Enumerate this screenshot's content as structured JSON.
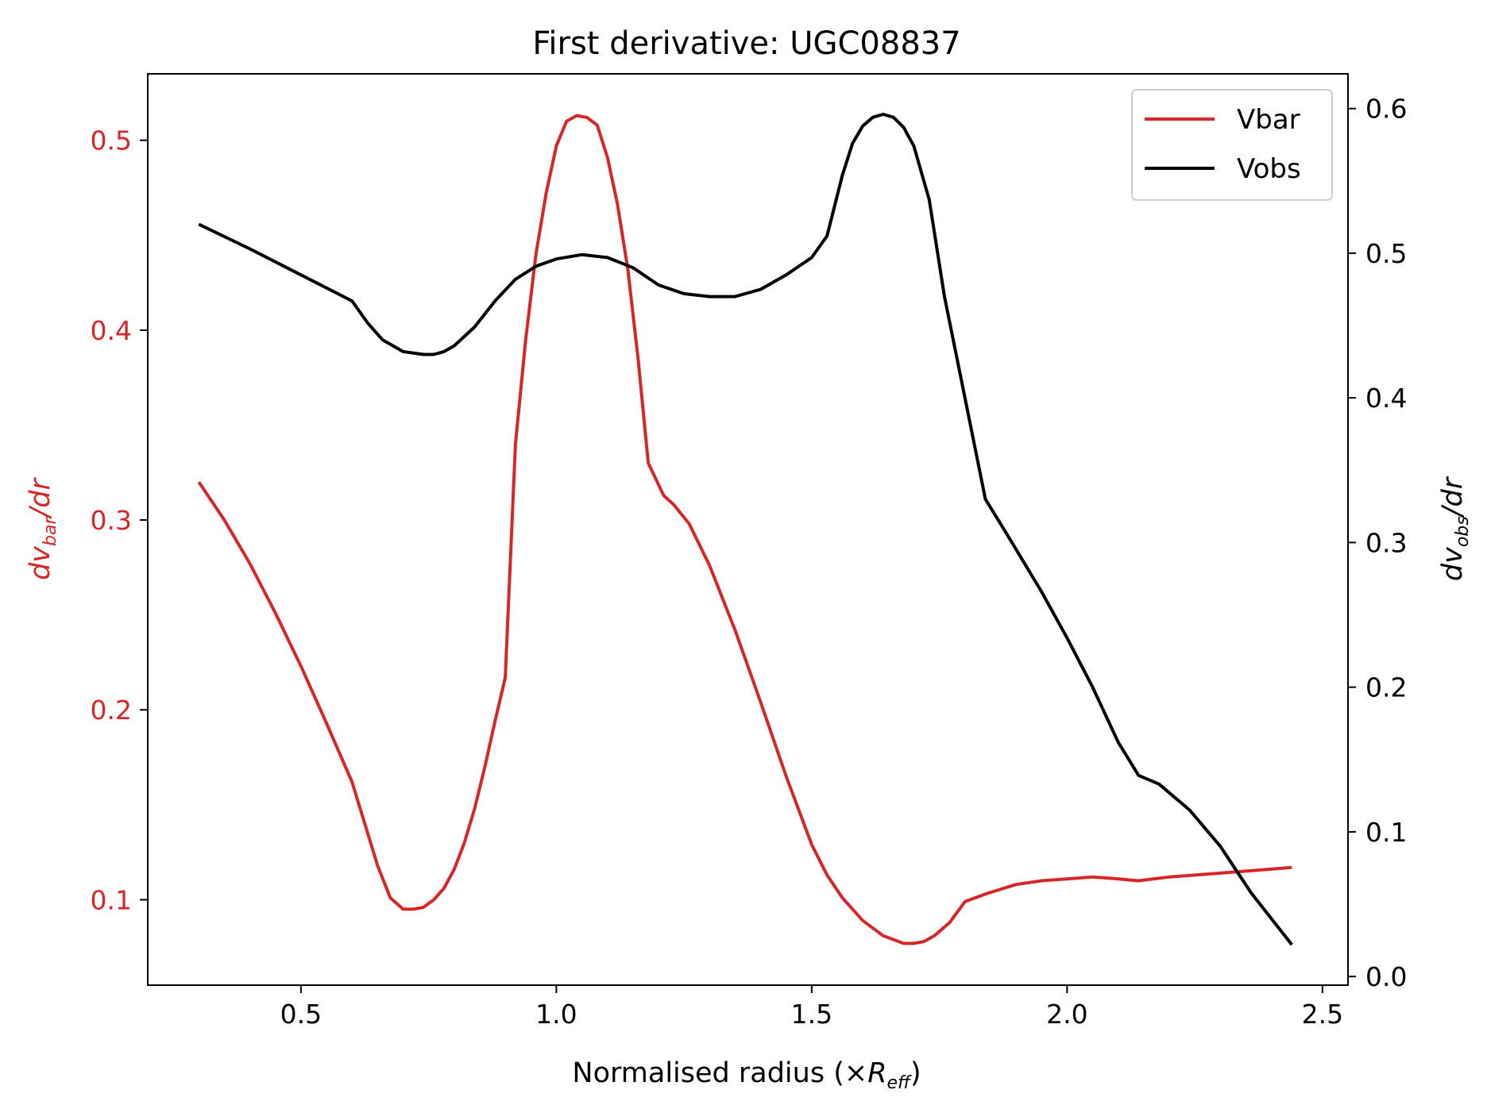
{
  "chart_data": {
    "type": "line",
    "title": "First derivative: UGC08837",
    "xlabel": {
      "main": "Normalised radius (×",
      "var": "R",
      "sub": "eff",
      "end": ")"
    },
    "ylabel_left": {
      "d": "dv",
      "sub": "bar",
      "end": "/dr"
    },
    "ylabel_right": {
      "d": "dv",
      "sub": "obs",
      "end": "/dr"
    },
    "xlim": [
      0.2,
      2.55
    ],
    "ylim_left": [
      0.055,
      0.535
    ],
    "ylim_right": [
      -0.006,
      0.624
    ],
    "xticks": [
      0.5,
      1.0,
      1.5,
      2.0,
      2.5
    ],
    "xtick_labels": [
      "0.5",
      "1.0",
      "1.5",
      "2.0",
      "2.5"
    ],
    "yticks_left": [
      0.1,
      0.2,
      0.3,
      0.4,
      0.5
    ],
    "ytick_labels_left": [
      "0.1",
      "0.2",
      "0.3",
      "0.4",
      "0.5"
    ],
    "yticks_right": [
      0.0,
      0.1,
      0.2,
      0.3,
      0.4,
      0.5,
      0.6
    ],
    "ytick_labels_right": [
      "0.0",
      "0.1",
      "0.2",
      "0.3",
      "0.4",
      "0.5",
      "0.6"
    ],
    "legend": {
      "placement": "top-right",
      "entries": [
        "Vbar",
        "Vobs"
      ]
    },
    "grid": false,
    "colors": {
      "vbar": "#d62728",
      "vobs": "#000000",
      "left_axis": "#d62728"
    },
    "series": [
      {
        "name": "Vbar",
        "axis": "left",
        "x": [
          0.3,
          0.35,
          0.4,
          0.45,
          0.5,
          0.55,
          0.6,
          0.625,
          0.65,
          0.675,
          0.7,
          0.72,
          0.74,
          0.76,
          0.78,
          0.8,
          0.82,
          0.84,
          0.86,
          0.88,
          0.9,
          0.92,
          0.94,
          0.96,
          0.98,
          1.0,
          1.02,
          1.04,
          1.06,
          1.08,
          1.1,
          1.12,
          1.14,
          1.16,
          1.18,
          1.21,
          1.23,
          1.26,
          1.3,
          1.35,
          1.4,
          1.45,
          1.5,
          1.53,
          1.56,
          1.6,
          1.64,
          1.68,
          1.7,
          1.72,
          1.74,
          1.77,
          1.8,
          1.84,
          1.9,
          1.95,
          2.0,
          2.05,
          2.1,
          2.14,
          2.2,
          2.3,
          2.44
        ],
        "values": [
          0.32,
          0.3,
          0.277,
          0.251,
          0.223,
          0.193,
          0.162,
          0.14,
          0.118,
          0.101,
          0.095,
          0.095,
          0.096,
          0.1,
          0.106,
          0.116,
          0.13,
          0.148,
          0.17,
          0.194,
          0.217,
          0.34,
          0.395,
          0.44,
          0.472,
          0.497,
          0.51,
          0.513,
          0.512,
          0.508,
          0.491,
          0.466,
          0.432,
          0.385,
          0.33,
          0.313,
          0.308,
          0.298,
          0.276,
          0.242,
          0.204,
          0.165,
          0.129,
          0.113,
          0.101,
          0.089,
          0.081,
          0.077,
          0.077,
          0.078,
          0.081,
          0.088,
          0.099,
          0.103,
          0.108,
          0.11,
          0.111,
          0.112,
          0.111,
          0.11,
          0.112,
          0.114,
          0.117
        ]
      },
      {
        "name": "Vobs",
        "axis": "right",
        "x": [
          0.3,
          0.4,
          0.5,
          0.6,
          0.63,
          0.66,
          0.7,
          0.74,
          0.76,
          0.78,
          0.8,
          0.84,
          0.88,
          0.92,
          0.96,
          1.0,
          1.05,
          1.1,
          1.15,
          1.2,
          1.25,
          1.3,
          1.35,
          1.4,
          1.45,
          1.5,
          1.53,
          1.56,
          1.58,
          1.6,
          1.62,
          1.64,
          1.66,
          1.68,
          1.7,
          1.73,
          1.76,
          1.8,
          1.84,
          1.88,
          1.95,
          2.0,
          2.05,
          2.1,
          2.14,
          2.18,
          2.24,
          2.3,
          2.36,
          2.44
        ],
        "values": [
          0.52,
          0.503,
          0.485,
          0.467,
          0.452,
          0.44,
          0.432,
          0.43,
          0.43,
          0.432,
          0.436,
          0.449,
          0.467,
          0.482,
          0.491,
          0.496,
          0.499,
          0.497,
          0.49,
          0.478,
          0.472,
          0.47,
          0.47,
          0.475,
          0.485,
          0.497,
          0.512,
          0.554,
          0.576,
          0.588,
          0.594,
          0.596,
          0.594,
          0.587,
          0.574,
          0.537,
          0.47,
          0.4,
          0.33,
          0.307,
          0.266,
          0.234,
          0.2,
          0.162,
          0.139,
          0.133,
          0.115,
          0.09,
          0.058,
          0.022
        ]
      }
    ]
  }
}
